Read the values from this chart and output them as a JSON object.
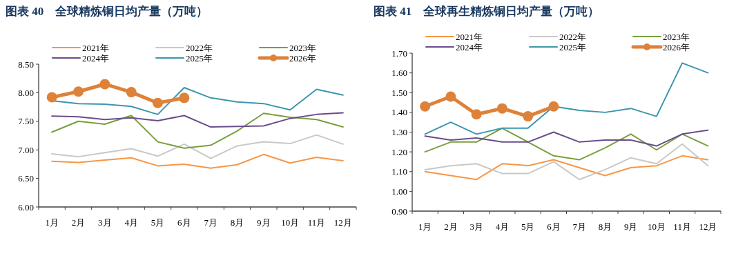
{
  "chart_data": [
    {
      "type": "line",
      "title": "图表 40　全球精炼铜日均产量（万吨）",
      "categories": [
        "1月",
        "2月",
        "3月",
        "4月",
        "5月",
        "6月",
        "7月",
        "8月",
        "9月",
        "10月",
        "11月",
        "12月"
      ],
      "ylim": [
        6.0,
        8.5
      ],
      "yticks": [
        {
          "value": 6.0,
          "label": "6.00"
        },
        {
          "value": 6.5,
          "label": "6.50"
        },
        {
          "value": 7.0,
          "label": "7.00"
        },
        {
          "value": 7.5,
          "label": "7.50"
        },
        {
          "value": 8.0,
          "label": "8.00"
        },
        {
          "value": 8.5,
          "label": "8.50"
        }
      ],
      "grid": false,
      "legend": "top",
      "series": [
        {
          "name": "2021年",
          "color": "#f79646",
          "values": [
            6.8,
            6.78,
            6.82,
            6.86,
            6.72,
            6.75,
            6.68,
            6.74,
            6.92,
            6.77,
            6.87,
            6.81
          ]
        },
        {
          "name": "2022年",
          "color": "#c8c8c8",
          "values": [
            6.93,
            6.88,
            6.95,
            7.02,
            6.89,
            7.1,
            6.85,
            7.07,
            7.14,
            7.11,
            7.26,
            7.1
          ]
        },
        {
          "name": "2023年",
          "color": "#77a03c",
          "values": [
            7.31,
            7.5,
            7.45,
            7.6,
            7.14,
            7.03,
            7.08,
            7.33,
            7.64,
            7.57,
            7.53,
            7.4
          ]
        },
        {
          "name": "2024年",
          "color": "#6a4c8c",
          "values": [
            7.59,
            7.58,
            7.53,
            7.56,
            7.51,
            7.6,
            7.4,
            7.41,
            7.42,
            7.55,
            7.62,
            7.65
          ]
        },
        {
          "name": "2025年",
          "color": "#3a96ad",
          "values": [
            7.86,
            7.81,
            7.8,
            7.76,
            7.62,
            8.09,
            7.91,
            7.84,
            7.81,
            7.7,
            8.06,
            7.96
          ]
        },
        {
          "name": "2026年",
          "color": "#de8239",
          "marker": "circle",
          "values": [
            7.92,
            8.02,
            8.15,
            8.01,
            7.82,
            7.91,
            null,
            null,
            null,
            null,
            null,
            null
          ]
        }
      ]
    },
    {
      "type": "line",
      "title": "图表 41　全球再生精炼铜日均产量（万吨）",
      "categories": [
        "1月",
        "2月",
        "3月",
        "4月",
        "5月",
        "6月",
        "7月",
        "8月",
        "9月",
        "10月",
        "11月",
        "12月"
      ],
      "ylim": [
        0.9,
        1.7
      ],
      "yticks": [
        {
          "value": 0.9,
          "label": "0.90"
        },
        {
          "value": 1.0,
          "label": "1.00"
        },
        {
          "value": 1.1,
          "label": "1.10"
        },
        {
          "value": 1.2,
          "label": "1.20"
        },
        {
          "value": 1.3,
          "label": "1.30"
        },
        {
          "value": 1.4,
          "label": "1.40"
        },
        {
          "value": 1.5,
          "label": "1.50"
        },
        {
          "value": 1.6,
          "label": "1.60"
        },
        {
          "value": 1.7,
          "label": "1.70"
        }
      ],
      "grid": false,
      "legend": "top",
      "series": [
        {
          "name": "2021年",
          "color": "#f79646",
          "values": [
            1.1,
            1.08,
            1.06,
            1.14,
            1.13,
            1.16,
            1.12,
            1.08,
            1.12,
            1.13,
            1.18,
            1.16
          ]
        },
        {
          "name": "2022年",
          "color": "#c8c8c8",
          "values": [
            1.11,
            1.13,
            1.14,
            1.09,
            1.09,
            1.15,
            1.06,
            1.11,
            1.17,
            1.14,
            1.24,
            1.13
          ]
        },
        {
          "name": "2023年",
          "color": "#77a03c",
          "values": [
            1.2,
            1.25,
            1.25,
            1.32,
            1.25,
            1.18,
            1.16,
            1.22,
            1.29,
            1.21,
            1.29,
            1.23
          ]
        },
        {
          "name": "2024年",
          "color": "#6a4c8c",
          "values": [
            1.28,
            1.26,
            1.27,
            1.25,
            1.25,
            1.3,
            1.25,
            1.26,
            1.26,
            1.23,
            1.29,
            1.31
          ]
        },
        {
          "name": "2025年",
          "color": "#3a96ad",
          "values": [
            1.29,
            1.35,
            1.29,
            1.32,
            1.32,
            1.43,
            1.41,
            1.4,
            1.42,
            1.38,
            1.65,
            1.6
          ]
        },
        {
          "name": "2026年",
          "color": "#de8239",
          "marker": "circle",
          "values": [
            1.43,
            1.48,
            1.39,
            1.42,
            1.38,
            1.43,
            null,
            null,
            null,
            null,
            null,
            null
          ]
        }
      ]
    }
  ]
}
